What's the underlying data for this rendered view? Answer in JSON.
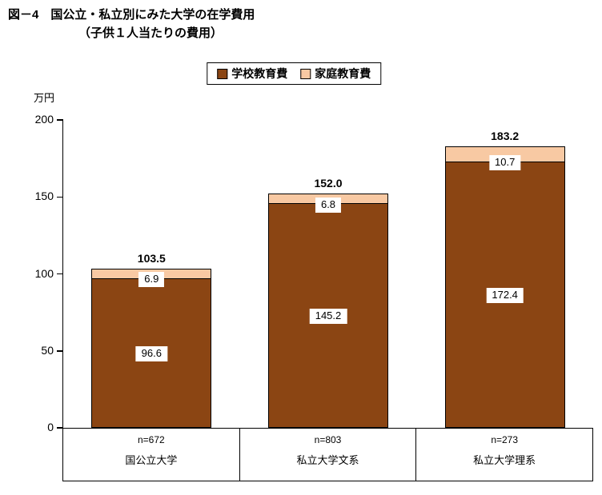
{
  "title": {
    "line1": "図－4　国公立・私立別にみた大学の在学費用",
    "line2": "（子供１人当たりの費用）"
  },
  "legend": [
    {
      "label": "学校教育費",
      "color": "#8B4513"
    },
    {
      "label": "家庭教育費",
      "color": "#F8C9A3"
    }
  ],
  "y_axis": {
    "unit": "万円",
    "ticks": [
      0,
      50,
      100,
      150,
      200
    ],
    "max": 200
  },
  "chart_data": {
    "type": "bar",
    "stacked": true,
    "title": "図－4　国公立・私立別にみた大学の在学費用（子供１人当たりの費用）",
    "ylabel": "万円",
    "ylim": [
      0,
      200
    ],
    "grid": false,
    "legend_position": "top",
    "categories": [
      "国公立大学",
      "私立大学文系",
      "私立大学理系"
    ],
    "n_labels": [
      "n=672",
      "n=803",
      "n=273"
    ],
    "series": [
      {
        "name": "学校教育費",
        "values": [
          96.6,
          145.2,
          172.4
        ],
        "color": "#8B4513"
      },
      {
        "name": "家庭教育費",
        "values": [
          6.9,
          6.8,
          10.7
        ],
        "color": "#F8C9A3"
      }
    ],
    "totals": [
      103.5,
      152.0,
      183.2
    ],
    "totals_display": [
      "103.5",
      "152.0",
      "183.2"
    ]
  }
}
